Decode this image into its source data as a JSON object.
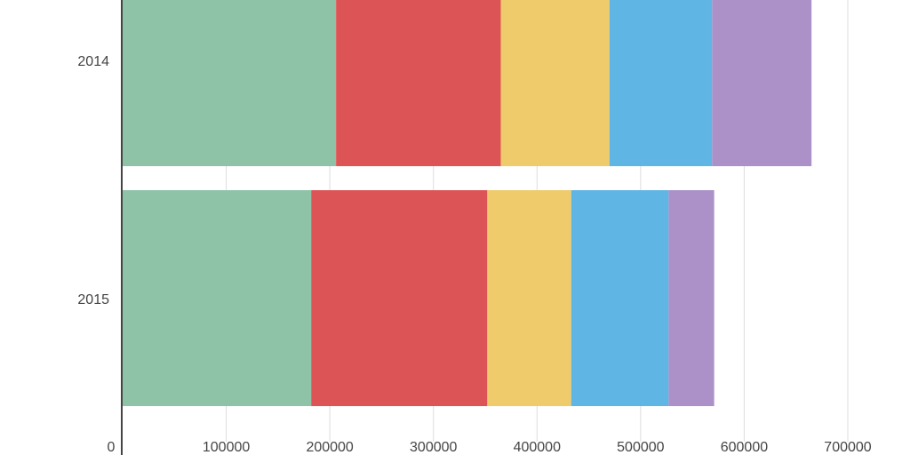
{
  "chart_data": {
    "type": "bar",
    "orientation": "horizontal",
    "stacked": true,
    "categories": [
      "2014",
      "2015"
    ],
    "series": [
      {
        "values": [
          206000,
          182000
        ],
        "color": "#8fc3a7"
      },
      {
        "values": [
          159000,
          170000
        ],
        "color": "#dd5456"
      },
      {
        "values": [
          105000,
          81000
        ],
        "color": "#efcb6b"
      },
      {
        "values": [
          99000,
          94000
        ],
        "color": "#5fb5e4"
      },
      {
        "values": [
          96000,
          44000
        ],
        "color": "#ab91c8"
      }
    ],
    "xlim": [
      0,
      700000
    ],
    "xticks": [
      0,
      100000,
      200000,
      300000,
      400000,
      500000,
      600000,
      700000
    ],
    "xtick_labels": [
      "0",
      "100000",
      "200000",
      "300000",
      "400000",
      "500000",
      "600000",
      "700000"
    ],
    "grid": true,
    "legend": "none"
  }
}
